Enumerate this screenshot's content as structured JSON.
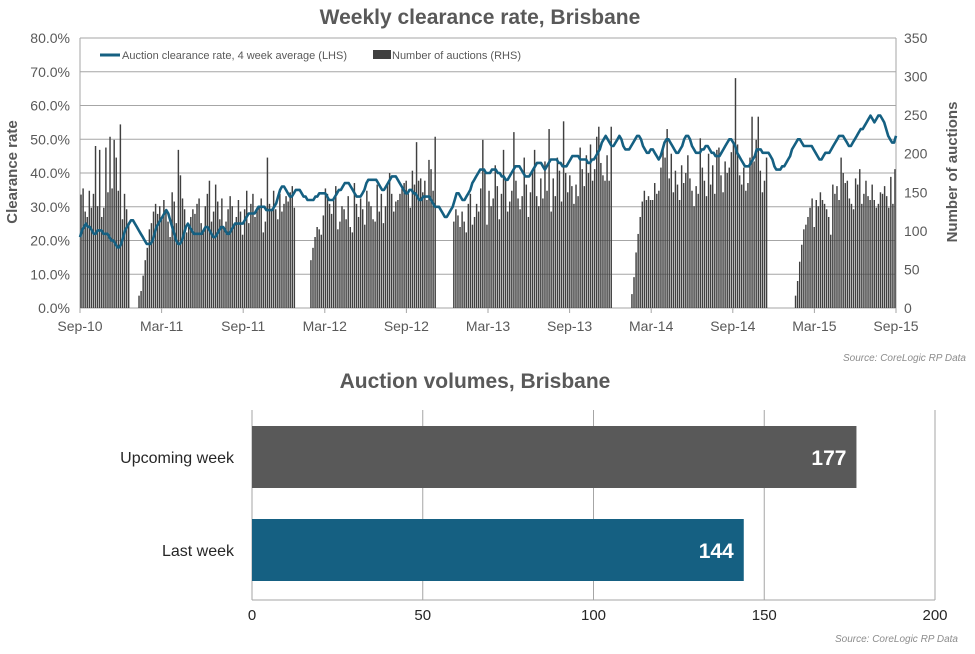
{
  "chart_data": [
    {
      "type": "bar+line",
      "title": "Weekly clearance rate, Brisbane",
      "ylabel": "Clearance rate",
      "y2label": "Number of auctions",
      "ylim": [
        0,
        80
      ],
      "y2lim": [
        0,
        350
      ],
      "y_ticks": [
        "0.0%",
        "10.0%",
        "20.0%",
        "30.0%",
        "40.0%",
        "50.0%",
        "60.0%",
        "70.0%",
        "80.0%"
      ],
      "y2_ticks": [
        "0",
        "50",
        "100",
        "150",
        "200",
        "250",
        "300",
        "350"
      ],
      "x_ticks": [
        "Sep-10",
        "Mar-11",
        "Sep-11",
        "Mar-12",
        "Sep-12",
        "Mar-13",
        "Sep-13",
        "Mar-14",
        "Sep-14",
        "Mar-15",
        "Sep-15"
      ],
      "legend": {
        "position": "top-left",
        "line_label": "Auction clearance rate, 4 week average (LHS)",
        "bar_label": "Number of auctions (RHS)"
      },
      "grid": true,
      "colors": {
        "line": "#156082",
        "bars": "#404040",
        "grid": "#a6a6a6"
      },
      "weekly_auctions": [
        147,
        155,
        125,
        118,
        152,
        130,
        148,
        210,
        132,
        205,
        118,
        130,
        208,
        150,
        222,
        155,
        218,
        195,
        152,
        238,
        115,
        148,
        128,
        108,
        null,
        null,
        null,
        null,
        16,
        22,
        42,
        62,
        78,
        102,
        110,
        125,
        135,
        122,
        132,
        118,
        140,
        128,
        112,
        92,
        150,
        138,
        110,
        205,
        172,
        142,
        128,
        98,
        105,
        118,
        128,
        122,
        135,
        142,
        110,
        98,
        132,
        148,
        165,
        112,
        125,
        160,
        138,
        115,
        142,
        105,
        112,
        128,
        145,
        132,
        108,
        118,
        140,
        125,
        95,
        128,
        152,
        110,
        135,
        148,
        118,
        128,
        132,
        142,
        98,
        112,
        195,
        135,
        128,
        152,
        128,
        115,
        148,
        125,
        135,
        145,
        138,
        150,
        158,
        130,
        null,
        null,
        null,
        null,
        null,
        null,
        null,
        62,
        78,
        92,
        105,
        102,
        95,
        120,
        155,
        148,
        135,
        122,
        142,
        158,
        102,
        112,
        132,
        128,
        115,
        145,
        105,
        98,
        162,
        135,
        118,
        142,
        128,
        108,
        152,
        138,
        132,
        115,
        112,
        160,
        125,
        148,
        110,
        132,
        162,
        175,
        148,
        125,
        138,
        140,
        148,
        155,
        162,
        165,
        148,
        130,
        178,
        160,
        215,
        165,
        168,
        150,
        165,
        140,
        192,
        180,
        152,
        222,
        null,
        null,
        null,
        null,
        null,
        null,
        null,
        null,
        112,
        128,
        120,
        105,
        125,
        112,
        98,
        135,
        148,
        108,
        118,
        135,
        125,
        155,
        218,
        175,
        108,
        152,
        132,
        142,
        185,
        158,
        115,
        148,
        205,
        165,
        125,
        138,
        152,
        228,
        165,
        142,
        128,
        145,
        195,
        160,
        118,
        150,
        178,
        205,
        145,
        132,
        168,
        142,
        190,
        152,
        232,
        125,
        168,
        145,
        195,
        178,
        138,
        242,
        175,
        150,
        172,
        158,
        135,
        160,
        145,
        208,
        180,
        158,
        198,
        175,
        212,
        165,
        180,
        222,
        235,
        188,
        172,
        165,
        198,
        165,
        235,
        null,
        null,
        null,
        null,
        null,
        null,
        null,
        null,
        null,
        18,
        40,
        72,
        96,
        118,
        138,
        152,
        140,
        145,
        140,
        140,
        162,
        148,
        152,
        182,
        208,
        195,
        232,
        168,
        200,
        150,
        178,
        160,
        140,
        185,
        162,
        175,
        198,
        168,
        152,
        132,
        158,
        148,
        220,
        182,
        165,
        145,
        200,
        160,
        185,
        148,
        205,
        208,
        172,
        150,
        190,
        175,
        182,
        202,
        215,
        298,
        212,
        172,
        160,
        182,
        152,
        162,
        195,
        248,
        190,
        218,
        248,
        178,
        150,
        165,
        195,
        null,
        null,
        null,
        null,
        null,
        null,
        null,
        null,
        null,
        null,
        null,
        null,
        null,
        16,
        35,
        60,
        82,
        102,
        108,
        118,
        130,
        142,
        105,
        140,
        132,
        150,
        140,
        135,
        128,
        118,
        95,
        160,
        148,
        158,
        140,
        195,
        175,
        162,
        165,
        142,
        135,
        128,
        168,
        160,
        180,
        135,
        148,
        165,
        145,
        140,
        160,
        140,
        130,
        135,
        150,
        148,
        158,
        145,
        130,
        170,
        135,
        180
      ],
      "four_week_avg_pct": [
        21,
        23,
        24,
        25,
        24,
        24,
        23,
        22,
        22,
        23,
        23,
        23,
        22,
        22,
        22,
        21,
        20,
        20,
        19,
        18,
        18,
        19,
        21,
        23,
        24,
        25,
        26,
        26,
        25,
        24,
        23,
        22,
        21,
        20,
        19,
        19,
        19,
        20,
        22,
        24,
        25,
        26,
        27,
        28,
        29,
        28,
        26,
        24,
        22,
        20,
        19,
        19,
        20,
        22,
        24,
        25,
        24,
        23,
        22,
        22,
        22,
        22,
        22,
        23,
        24,
        24,
        23,
        22,
        21,
        21,
        22,
        23,
        24,
        24,
        23,
        22,
        22,
        23,
        24,
        25,
        25,
        25,
        25,
        25,
        26,
        27,
        28,
        28,
        28,
        28,
        29,
        30,
        30,
        30,
        30,
        29,
        29,
        29,
        29,
        30,
        31,
        33,
        35,
        36,
        36,
        35,
        34,
        33,
        33,
        34,
        35,
        35,
        35,
        34,
        33,
        33,
        32,
        32,
        32,
        32,
        33,
        33,
        34,
        34,
        34,
        34,
        33,
        32,
        32,
        32,
        33,
        34,
        35,
        35,
        36,
        37,
        37,
        37,
        36,
        35,
        34,
        33,
        33,
        33,
        34,
        35,
        37,
        38,
        38,
        38,
        38,
        38,
        37,
        36,
        35,
        35,
        36,
        37,
        38,
        39,
        39,
        39,
        38,
        37,
        36,
        35,
        34,
        34,
        35,
        35,
        34,
        34,
        33,
        32,
        32,
        33,
        33,
        33,
        33,
        32,
        31,
        30,
        30,
        30,
        29,
        28,
        27,
        27,
        28,
        29,
        30,
        32,
        34,
        34,
        33,
        32,
        32,
        33,
        34,
        35,
        37,
        38,
        39,
        40,
        41,
        41,
        41,
        40,
        40,
        40,
        41,
        41,
        41,
        40,
        40,
        39,
        39,
        38,
        38,
        39,
        40,
        41,
        42,
        42,
        42,
        41,
        40,
        39,
        39,
        39,
        40,
        41,
        42,
        43,
        43,
        43,
        42,
        41,
        42,
        43,
        44,
        44,
        44,
        44,
        43,
        43,
        42,
        42,
        42,
        43,
        44,
        45,
        45,
        45,
        45,
        44,
        44,
        44,
        44,
        43,
        43,
        44,
        44,
        45,
        46,
        47,
        49,
        50,
        51,
        50,
        49,
        48,
        48,
        49,
        50,
        51,
        50,
        48,
        47,
        47,
        47,
        48,
        49,
        50,
        51,
        51,
        50,
        48,
        47,
        46,
        46,
        47,
        47,
        46,
        45,
        44,
        45,
        47,
        49,
        50,
        50,
        49,
        48,
        47,
        46,
        46,
        47,
        48,
        50,
        51,
        51,
        50,
        48,
        47,
        46,
        46,
        46,
        47,
        47,
        48,
        48,
        47,
        46,
        46,
        45,
        45,
        45,
        46,
        47,
        48,
        49,
        50,
        50,
        49,
        48,
        46,
        45,
        44,
        43,
        42,
        42,
        42,
        43,
        44,
        45,
        47,
        47,
        47,
        46,
        46,
        46,
        46,
        45,
        44,
        42,
        41,
        41,
        41,
        42,
        42,
        43,
        44,
        45,
        47,
        48,
        49,
        50,
        50,
        49,
        48,
        48,
        48,
        48,
        48,
        47,
        46,
        45,
        44,
        44,
        45,
        46,
        46,
        46,
        47,
        48,
        49,
        50,
        51,
        51,
        51,
        50,
        49,
        48,
        48,
        49,
        50,
        51,
        52,
        53,
        53,
        54,
        55,
        56,
        57,
        56,
        55,
        56,
        57,
        57,
        56,
        55,
        53,
        51,
        50,
        49,
        49,
        51
      ]
    },
    {
      "type": "bar",
      "orientation": "horizontal",
      "title": "Auction volumes, Brisbane",
      "categories": [
        "Upcoming week",
        "Last week"
      ],
      "values": [
        177,
        144
      ],
      "xlim": [
        0,
        200
      ],
      "x_ticks": [
        "0",
        "50",
        "100",
        "150",
        "200"
      ],
      "colors": [
        "#595959",
        "#156082"
      ],
      "grid": true
    }
  ],
  "sources": {
    "top": "Source: CoreLogic  RP Data",
    "bottom": "Source: CoreLogic  RP Data"
  }
}
